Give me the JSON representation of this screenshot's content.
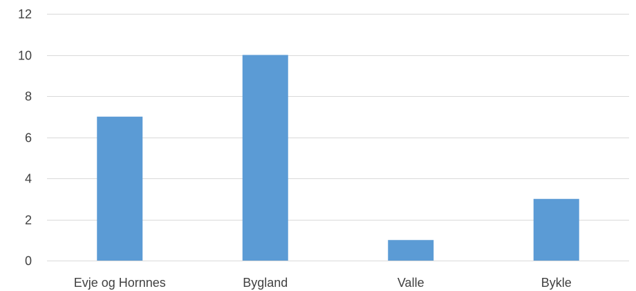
{
  "chart_data": {
    "type": "bar",
    "categories": [
      "Evje og Hornnes",
      "Bygland",
      "Valle",
      "Bykle"
    ],
    "values": [
      7,
      10,
      1,
      3
    ],
    "title": "",
    "xlabel": "",
    "ylabel": "",
    "ylim": [
      0,
      12
    ],
    "yticks": [
      "0",
      "2",
      "4",
      "6",
      "8",
      "10",
      "12"
    ],
    "grid": true,
    "legend": "none",
    "bar_color": "#5b9bd5"
  }
}
